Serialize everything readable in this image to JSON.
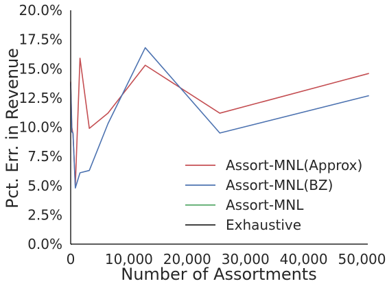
{
  "chart_data": {
    "type": "line",
    "title": "",
    "xlabel": "Number of Assortments",
    "ylabel": "Pct. Err. in Revenue",
    "xlim": [
      0,
      51000
    ],
    "ylim": [
      0,
      20
    ],
    "x_ticks": [
      0,
      10000,
      20000,
      30000,
      40000,
      50000
    ],
    "x_tick_labels": [
      "0",
      "10,000",
      "20,000",
      "30,000",
      "40,000",
      "50,000"
    ],
    "y_ticks": [
      0,
      2.5,
      5,
      7.5,
      10,
      12.5,
      15,
      17.5,
      20
    ],
    "y_tick_labels": [
      "0.0%",
      "2.5%",
      "5.0%",
      "7.5%",
      "10.0%",
      "12.5%",
      "15.0%",
      "17.5%",
      "20.0%"
    ],
    "grid": false,
    "legend_position": "lower-right",
    "series": [
      {
        "name": "Assort-MNL(Approx)",
        "color": "#c44e52",
        "x": [
          0,
          200,
          400,
          800,
          1600,
          3200,
          6400,
          12800,
          25600,
          51200
        ],
        "y": [
          13.9,
          10.0,
          9.4,
          5.0,
          15.9,
          9.9,
          11.2,
          15.3,
          11.2,
          14.6
        ]
      },
      {
        "name": "Assort-MNL(BZ)",
        "color": "#4c72b0",
        "x": [
          0,
          200,
          400,
          800,
          1600,
          3200,
          6400,
          12800,
          25600,
          51200
        ],
        "y": [
          13.8,
          9.6,
          9.5,
          4.8,
          6.1,
          6.3,
          10.3,
          16.8,
          9.5,
          12.7
        ]
      },
      {
        "name": "Assort-MNL",
        "color": "#55a868",
        "x": [
          0,
          200
        ],
        "y": [
          0.0,
          0.0
        ]
      },
      {
        "name": "Exhaustive",
        "color": "#262626",
        "x": [
          0,
          200
        ],
        "y": [
          0.0,
          0.0
        ]
      }
    ]
  }
}
